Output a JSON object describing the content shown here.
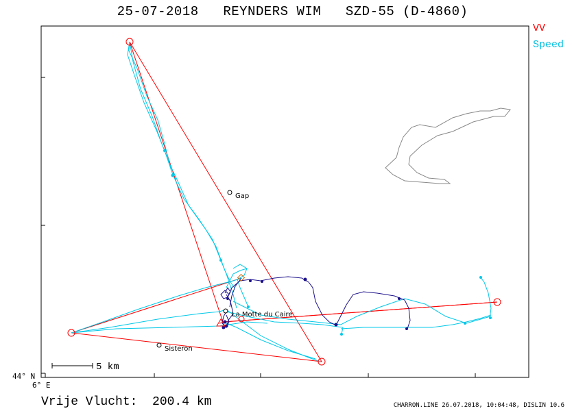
{
  "title": "25-07-2018   REYNDERS WIM   SZD-55 (D-4860)",
  "legend": {
    "vv": "VV",
    "speed": "Speed",
    "vv_color": "#ff0000",
    "speed_color": "#00c8e8"
  },
  "axes": {
    "lat_label": "44° N",
    "lon_label": "6° E"
  },
  "scale": {
    "label": "5 km"
  },
  "places": {
    "gap": "Gap",
    "la_motte": "La Motte du Caire",
    "sisteron": "Sisteron"
  },
  "footer": {
    "distance": "Vrije Vlucht:  200.4 km",
    "meta": "CHARRON.LINE 26.07.2018, 10:04:48, DISLIN 10.6"
  },
  "track_colors": {
    "slow": "#1a0f8a",
    "fast": "#00c8e8",
    "task": "#ff0000",
    "lake": "#888888"
  }
}
